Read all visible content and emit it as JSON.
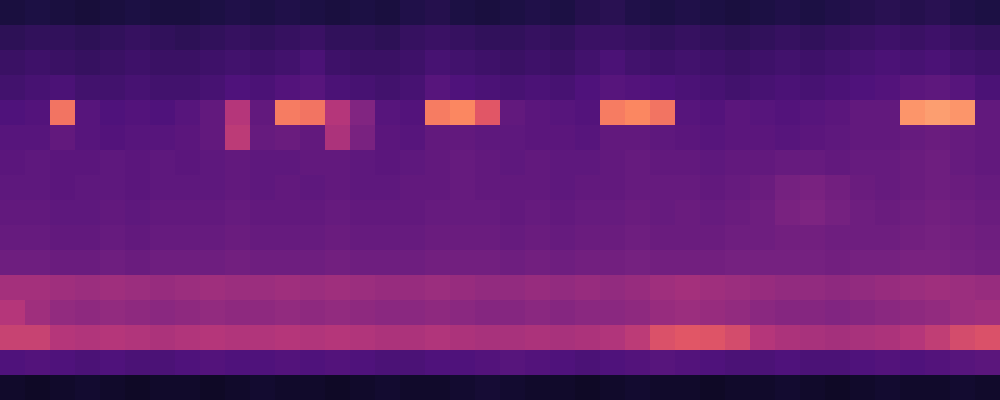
{
  "chart_data": {
    "type": "heatmap",
    "tick_labels": false,
    "xlim": [
      0,
      40
    ],
    "ylim": [
      0,
      16
    ],
    "color_range": [
      0,
      1
    ],
    "cells": [
      [
        0.12,
        0.13,
        0.12,
        0.11,
        0.12,
        0.13,
        0.12,
        0.12,
        0.13,
        0.14,
        0.13,
        0.14,
        0.13,
        0.12,
        0.13,
        0.12,
        0.14,
        0.15,
        0.13,
        0.12,
        0.13,
        0.14,
        0.13,
        0.15,
        0.16,
        0.14,
        0.13,
        0.14,
        0.13,
        0.12,
        0.13,
        0.14,
        0.13,
        0.14,
        0.15,
        0.16,
        0.15,
        0.16,
        0.14,
        0.13
      ],
      [
        0.17,
        0.18,
        0.18,
        0.17,
        0.18,
        0.19,
        0.18,
        0.17,
        0.18,
        0.19,
        0.18,
        0.19,
        0.2,
        0.18,
        0.18,
        0.17,
        0.19,
        0.2,
        0.19,
        0.18,
        0.18,
        0.19,
        0.18,
        0.2,
        0.2,
        0.19,
        0.18,
        0.19,
        0.18,
        0.17,
        0.18,
        0.19,
        0.18,
        0.19,
        0.2,
        0.21,
        0.2,
        0.21,
        0.19,
        0.18
      ],
      [
        0.2,
        0.21,
        0.2,
        0.19,
        0.2,
        0.21,
        0.2,
        0.2,
        0.21,
        0.22,
        0.21,
        0.22,
        0.24,
        0.21,
        0.2,
        0.2,
        0.21,
        0.23,
        0.22,
        0.21,
        0.2,
        0.21,
        0.2,
        0.22,
        0.24,
        0.22,
        0.21,
        0.22,
        0.21,
        0.2,
        0.21,
        0.22,
        0.21,
        0.22,
        0.23,
        0.24,
        0.23,
        0.24,
        0.22,
        0.21
      ],
      [
        0.22,
        0.23,
        0.24,
        0.22,
        0.22,
        0.23,
        0.22,
        0.22,
        0.23,
        0.25,
        0.24,
        0.26,
        0.27,
        0.24,
        0.23,
        0.22,
        0.23,
        0.27,
        0.25,
        0.24,
        0.23,
        0.24,
        0.23,
        0.25,
        0.27,
        0.26,
        0.25,
        0.24,
        0.23,
        0.22,
        0.23,
        0.24,
        0.23,
        0.24,
        0.25,
        0.26,
        0.28,
        0.29,
        0.27,
        0.24
      ],
      [
        0.25,
        0.26,
        0.7,
        0.27,
        0.25,
        0.26,
        0.25,
        0.27,
        0.3,
        0.5,
        0.3,
        0.72,
        0.7,
        0.5,
        0.38,
        0.27,
        0.26,
        0.72,
        0.75,
        0.62,
        0.3,
        0.28,
        0.27,
        0.26,
        0.72,
        0.75,
        0.7,
        0.27,
        0.26,
        0.28,
        0.27,
        0.26,
        0.27,
        0.28,
        0.3,
        0.3,
        0.78,
        0.8,
        0.78,
        0.3
      ],
      [
        0.27,
        0.27,
        0.3,
        0.27,
        0.26,
        0.27,
        0.27,
        0.28,
        0.3,
        0.52,
        0.31,
        0.32,
        0.3,
        0.48,
        0.36,
        0.28,
        0.27,
        0.3,
        0.3,
        0.29,
        0.29,
        0.28,
        0.28,
        0.27,
        0.3,
        0.3,
        0.29,
        0.28,
        0.27,
        0.28,
        0.28,
        0.27,
        0.28,
        0.29,
        0.3,
        0.3,
        0.31,
        0.32,
        0.31,
        0.3
      ],
      [
        0.28,
        0.29,
        0.28,
        0.28,
        0.29,
        0.28,
        0.29,
        0.28,
        0.29,
        0.3,
        0.29,
        0.29,
        0.3,
        0.3,
        0.29,
        0.28,
        0.29,
        0.3,
        0.31,
        0.3,
        0.29,
        0.3,
        0.29,
        0.29,
        0.3,
        0.31,
        0.3,
        0.3,
        0.29,
        0.3,
        0.3,
        0.31,
        0.31,
        0.3,
        0.31,
        0.31,
        0.32,
        0.33,
        0.31,
        0.3
      ],
      [
        0.29,
        0.29,
        0.28,
        0.29,
        0.29,
        0.28,
        0.29,
        0.29,
        0.29,
        0.3,
        0.29,
        0.3,
        0.29,
        0.3,
        0.29,
        0.29,
        0.3,
        0.3,
        0.31,
        0.3,
        0.3,
        0.3,
        0.29,
        0.3,
        0.3,
        0.31,
        0.31,
        0.31,
        0.3,
        0.31,
        0.32,
        0.35,
        0.36,
        0.34,
        0.32,
        0.31,
        0.32,
        0.33,
        0.32,
        0.31
      ],
      [
        0.3,
        0.3,
        0.29,
        0.29,
        0.3,
        0.29,
        0.3,
        0.3,
        0.3,
        0.31,
        0.3,
        0.3,
        0.3,
        0.31,
        0.3,
        0.3,
        0.3,
        0.31,
        0.31,
        0.31,
        0.3,
        0.31,
        0.3,
        0.31,
        0.31,
        0.32,
        0.31,
        0.32,
        0.31,
        0.32,
        0.33,
        0.36,
        0.37,
        0.35,
        0.33,
        0.32,
        0.33,
        0.34,
        0.33,
        0.32
      ],
      [
        0.31,
        0.31,
        0.3,
        0.3,
        0.31,
        0.3,
        0.31,
        0.31,
        0.31,
        0.32,
        0.31,
        0.31,
        0.31,
        0.32,
        0.31,
        0.31,
        0.31,
        0.32,
        0.32,
        0.32,
        0.31,
        0.32,
        0.31,
        0.32,
        0.32,
        0.33,
        0.32,
        0.32,
        0.32,
        0.33,
        0.33,
        0.34,
        0.34,
        0.33,
        0.33,
        0.33,
        0.34,
        0.35,
        0.34,
        0.33
      ],
      [
        0.33,
        0.33,
        0.32,
        0.32,
        0.33,
        0.32,
        0.33,
        0.33,
        0.33,
        0.34,
        0.33,
        0.33,
        0.33,
        0.34,
        0.33,
        0.33,
        0.33,
        0.34,
        0.34,
        0.34,
        0.33,
        0.34,
        0.33,
        0.34,
        0.34,
        0.35,
        0.34,
        0.34,
        0.34,
        0.35,
        0.35,
        0.35,
        0.35,
        0.34,
        0.35,
        0.35,
        0.36,
        0.36,
        0.35,
        0.34
      ],
      [
        0.46,
        0.46,
        0.45,
        0.44,
        0.45,
        0.44,
        0.43,
        0.44,
        0.45,
        0.44,
        0.44,
        0.45,
        0.44,
        0.45,
        0.44,
        0.43,
        0.43,
        0.44,
        0.43,
        0.42,
        0.42,
        0.43,
        0.42,
        0.43,
        0.42,
        0.43,
        0.45,
        0.46,
        0.45,
        0.44,
        0.43,
        0.42,
        0.42,
        0.41,
        0.42,
        0.43,
        0.44,
        0.45,
        0.44,
        0.43
      ],
      [
        0.5,
        0.45,
        0.42,
        0.41,
        0.42,
        0.41,
        0.4,
        0.41,
        0.42,
        0.41,
        0.41,
        0.42,
        0.41,
        0.42,
        0.41,
        0.4,
        0.4,
        0.41,
        0.4,
        0.39,
        0.39,
        0.4,
        0.39,
        0.4,
        0.4,
        0.41,
        0.43,
        0.44,
        0.43,
        0.42,
        0.4,
        0.39,
        0.39,
        0.38,
        0.39,
        0.4,
        0.41,
        0.42,
        0.44,
        0.45
      ],
      [
        0.55,
        0.55,
        0.5,
        0.49,
        0.5,
        0.49,
        0.48,
        0.49,
        0.5,
        0.49,
        0.49,
        0.5,
        0.49,
        0.5,
        0.49,
        0.48,
        0.48,
        0.49,
        0.48,
        0.47,
        0.47,
        0.48,
        0.47,
        0.48,
        0.49,
        0.52,
        0.6,
        0.62,
        0.61,
        0.58,
        0.5,
        0.48,
        0.47,
        0.46,
        0.47,
        0.48,
        0.5,
        0.53,
        0.58,
        0.6
      ],
      [
        0.25,
        0.26,
        0.25,
        0.24,
        0.25,
        0.24,
        0.24,
        0.25,
        0.26,
        0.25,
        0.25,
        0.26,
        0.25,
        0.26,
        0.25,
        0.24,
        0.24,
        0.25,
        0.25,
        0.26,
        0.27,
        0.26,
        0.25,
        0.24,
        0.25,
        0.26,
        0.27,
        0.26,
        0.25,
        0.24,
        0.24,
        0.25,
        0.24,
        0.24,
        0.25,
        0.26,
        0.25,
        0.26,
        0.27,
        0.28
      ],
      [
        0.08,
        0.07,
        0.08,
        0.09,
        0.08,
        0.07,
        0.08,
        0.08,
        0.07,
        0.08,
        0.09,
        0.08,
        0.08,
        0.07,
        0.08,
        0.09,
        0.08,
        0.08,
        0.09,
        0.1,
        0.09,
        0.08,
        0.08,
        0.07,
        0.08,
        0.09,
        0.08,
        0.08,
        0.07,
        0.08,
        0.08,
        0.09,
        0.08,
        0.07,
        0.08,
        0.09,
        0.08,
        0.08,
        0.09,
        0.08
      ]
    ]
  }
}
